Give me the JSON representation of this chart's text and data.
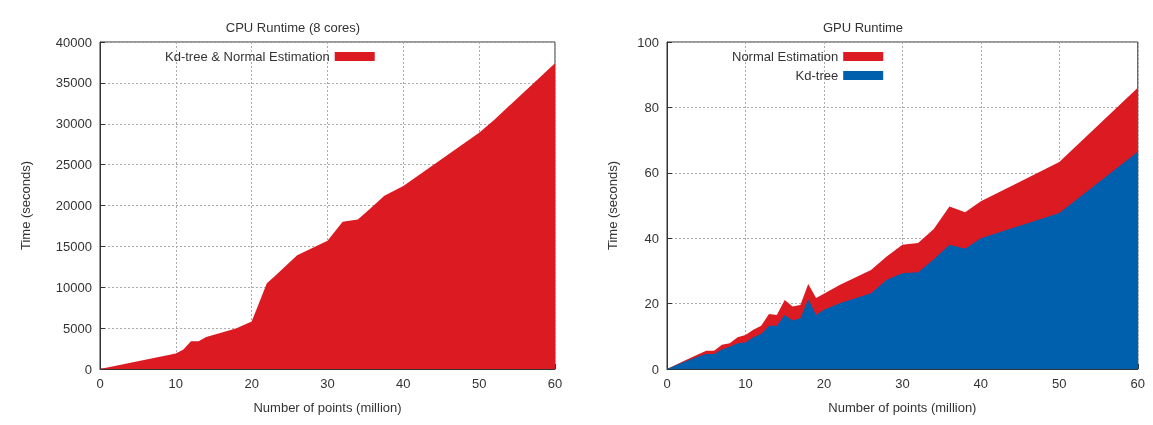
{
  "chart_data": [
    {
      "type": "area",
      "title": "CPU Runtime (8 cores)",
      "xlabel": "Number of points (million)",
      "ylabel": "Time (seconds)",
      "xlim": [
        0,
        60
      ],
      "xticks": [
        0,
        10,
        20,
        30,
        40,
        50,
        60
      ],
      "ylim": [
        0,
        40000
      ],
      "yticks": [
        0,
        5000,
        10000,
        15000,
        20000,
        25000,
        30000,
        35000,
        40000
      ],
      "grid": true,
      "legend": "top left",
      "x": [
        0,
        10,
        11,
        12,
        13,
        14,
        17,
        18,
        20,
        22,
        23,
        26,
        30,
        32,
        34,
        35.5,
        37.5,
        40,
        50,
        52,
        60
      ],
      "series": [
        {
          "name": "Kd-tree & Normal Estimation",
          "color": "#dc1a22",
          "values": [
            0,
            1900,
            2400,
            3400,
            3400,
            3900,
            4700,
            5000,
            5800,
            10500,
            11300,
            13900,
            15700,
            18000,
            18300,
            19500,
            21200,
            22400,
            28900,
            30500,
            37400
          ]
        }
      ]
    },
    {
      "type": "area",
      "title": "GPU Runtime",
      "xlabel": "Number of points (million)",
      "ylabel": "Time (seconds)",
      "xlim": [
        0,
        60
      ],
      "xticks": [
        0,
        10,
        20,
        30,
        40,
        50,
        60
      ],
      "ylim": [
        0,
        100
      ],
      "yticks": [
        0,
        20,
        40,
        60,
        80,
        100
      ],
      "grid": true,
      "legend": "top left",
      "stacked": true,
      "x": [
        0,
        2,
        4,
        5,
        6,
        7,
        8,
        9,
        10,
        11,
        12,
        13,
        14,
        15,
        16,
        17,
        18,
        19,
        20,
        22,
        26,
        28,
        30,
        32,
        34,
        36,
        38,
        40,
        50,
        60
      ],
      "series": [
        {
          "name": "Kd-tree",
          "color": "#0060ad",
          "values": [
            0,
            2,
            3.8,
            4.6,
            4.6,
            6,
            6.8,
            7.9,
            8.1,
            9.7,
            10.7,
            13.2,
            13.2,
            16.5,
            14.8,
            15.5,
            21.3,
            16.5,
            18.1,
            20.1,
            23.2,
            27.3,
            29.3,
            29.6,
            33.6,
            38,
            36.8,
            40,
            47.7,
            66.4
          ]
        },
        {
          "name": "Normal Estimation",
          "color": "#dc1a22",
          "values": [
            0,
            0.3,
            0.7,
            1.0,
            1.0,
            1.4,
            1.1,
            1.8,
            2.3,
            2.3,
            2.5,
            3.6,
            3.3,
            4.6,
            4.3,
            4.1,
            4.7,
            5.2,
            4.9,
            5.6,
            7.1,
            7.1,
            8.7,
            8.9,
            9.2,
            11.7,
            11.1,
            11.3,
            15.6,
            19.6
          ]
        }
      ]
    }
  ]
}
